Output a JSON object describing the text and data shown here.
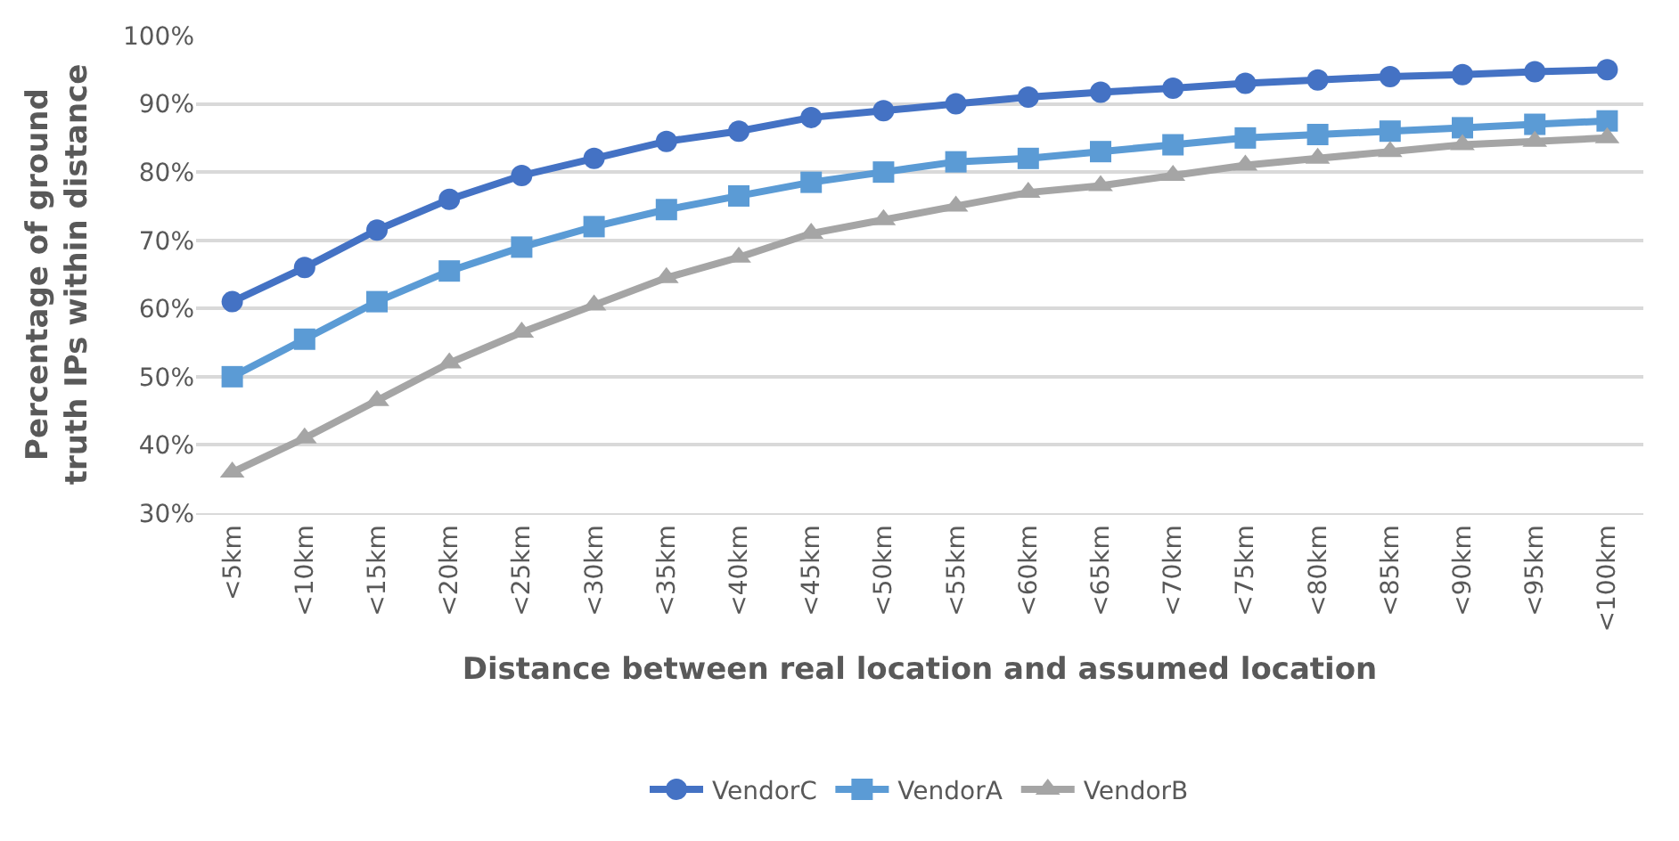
{
  "chart_data": {
    "type": "line",
    "xlabel": "Distance between real location and assumed location",
    "ylabel": "Percentage of ground truth IPs within distance",
    "categories": [
      "<5km",
      "<10km",
      "<15km",
      "<20km",
      "<25km",
      "<30km",
      "<35km",
      "<40km",
      "<45km",
      "<50km",
      "<55km",
      "<60km",
      "<65km",
      "<70km",
      "<75km",
      "<80km",
      "<85km",
      "<90km",
      "<95km",
      "<100km"
    ],
    "series": [
      {
        "name": "VendorC",
        "color": "#4472c4",
        "marker": "circle",
        "values": [
          61,
          66,
          71.5,
          76,
          79.5,
          82,
          84.5,
          86,
          88,
          89,
          90,
          91,
          91.7,
          92.3,
          93,
          93.5,
          94,
          94.3,
          94.7,
          95
        ]
      },
      {
        "name": "VendorA",
        "color": "#5b9bd5",
        "marker": "square",
        "values": [
          50,
          55.5,
          61,
          65.5,
          69,
          72,
          74.5,
          76.5,
          78.5,
          80,
          81.5,
          82,
          83,
          84,
          85,
          85.5,
          86,
          86.5,
          87,
          87.5
        ]
      },
      {
        "name": "VendorB",
        "color": "#a5a5a5",
        "marker": "triangle",
        "values": [
          36,
          41,
          46.5,
          52,
          56.5,
          60.5,
          64.5,
          67.5,
          71,
          73,
          75,
          77,
          78,
          79.5,
          81,
          82,
          83,
          84,
          84.5,
          85
        ]
      }
    ],
    "ylim": [
      30,
      100
    ],
    "yticks": [
      {
        "value": 30,
        "label": "30%"
      },
      {
        "value": 40,
        "label": "40%"
      },
      {
        "value": 50,
        "label": "50%"
      },
      {
        "value": 60,
        "label": "60%"
      },
      {
        "value": 70,
        "label": "70%"
      },
      {
        "value": 80,
        "label": "80%"
      },
      {
        "value": 90,
        "label": "90%"
      },
      {
        "value": 100,
        "label": "100%"
      }
    ],
    "grid": "y",
    "legend": "bottom",
    "line_style": "solid"
  }
}
